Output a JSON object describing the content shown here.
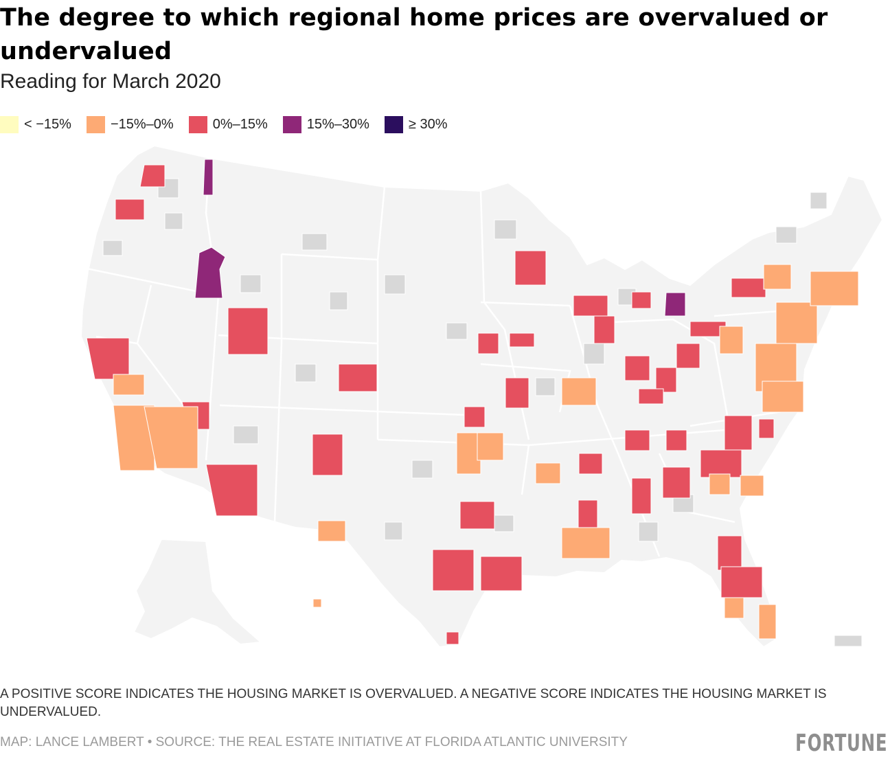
{
  "title": "The degree to which regional home prices are overvalued or undervalued",
  "subtitle": "Reading for March 2020",
  "legend": [
    {
      "label": "< −15%",
      "color": "#fffcbf"
    },
    {
      "label": "−15%–0%",
      "color": "#fdaa74"
    },
    {
      "label": "0%–15%",
      "color": "#e5505f"
    },
    {
      "label": "15%–30%",
      "color": "#8f2778"
    },
    {
      "label": "≥ 30%",
      "color": "#2b0e5e"
    }
  ],
  "colors": {
    "land": "#f3f3f3",
    "no_data_metro": "#d8d8d8",
    "borders": "#ffffff"
  },
  "note": "A positive score indicates the housing market is overvalued. A negative score indicates the housing market is undervalued.",
  "credit": "MAP: LANCE LAMBERT • SOURCE: THE REAL ESTATE INITIATIVE AT FLORIDA ATLANTIC UNIVERSITY",
  "brand": "FORTUNE"
}
